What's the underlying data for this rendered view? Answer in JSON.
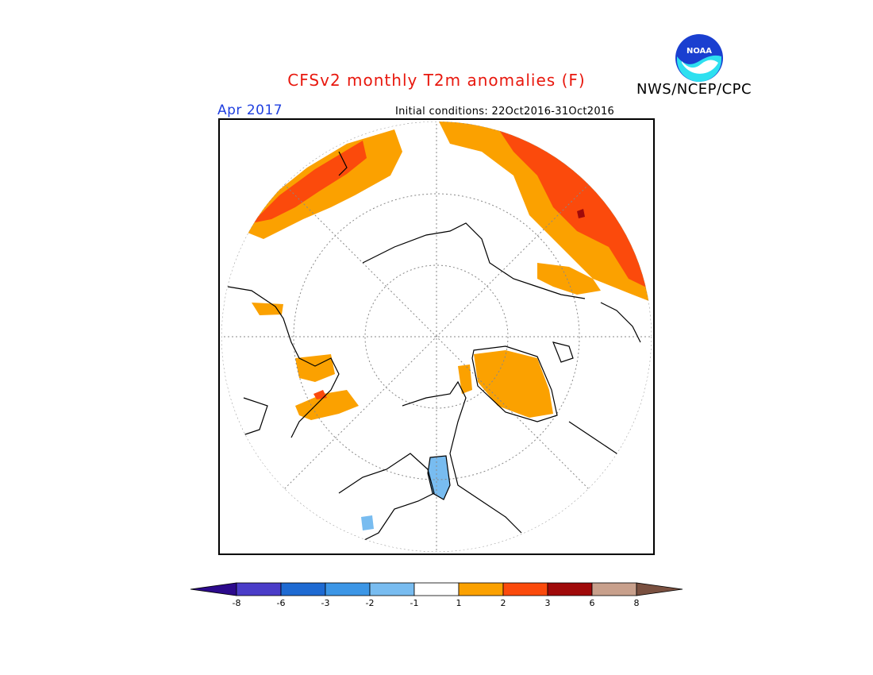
{
  "header": {
    "title": "CFSv2 monthly T2m anomalies (F)",
    "title_color": "#e8180e",
    "agency": "NWS/NCEP/CPC",
    "logo_icon": "noaa-logo-icon",
    "logo_text": "NOAA"
  },
  "map": {
    "valid_month": "Apr 2017",
    "valid_color": "#2040e0",
    "initial_conditions": "Initial conditions: 22Oct2016-31Oct2016",
    "projection": "north-polar-stereographic",
    "variable": "2m temperature anomaly",
    "units": "F"
  },
  "legend": {
    "ticks": [
      "-8",
      "-6",
      "-3",
      "-2",
      "-1",
      "1",
      "2",
      "3",
      "6",
      "8"
    ],
    "colors": {
      "below_-8": "#2c0a8c",
      "-8_-6": "#4a3cc8",
      "-6_-3": "#1e6ad2",
      "-3_-2": "#3c96e6",
      "-2_-1": "#78bcf0",
      "-1_1": "#ffffff",
      "1_2": "#fba100",
      "2_3": "#fb4a0c",
      "3_6": "#a00a0a",
      "6_8": "#c8a08c",
      "above_8": "#7a5040"
    }
  }
}
